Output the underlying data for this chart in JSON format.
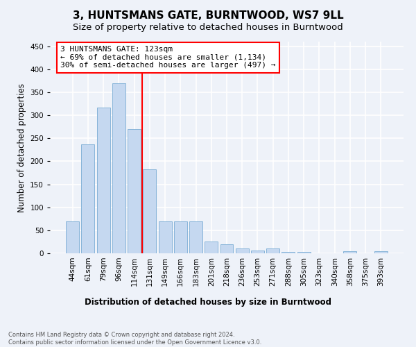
{
  "title": "3, HUNTSMANS GATE, BURNTWOOD, WS7 9LL",
  "subtitle": "Size of property relative to detached houses in Burntwood",
  "xlabel": "Distribution of detached houses by size in Burntwood",
  "ylabel": "Number of detached properties",
  "categories": [
    "44sqm",
    "61sqm",
    "79sqm",
    "96sqm",
    "114sqm",
    "131sqm",
    "149sqm",
    "166sqm",
    "183sqm",
    "201sqm",
    "218sqm",
    "236sqm",
    "253sqm",
    "271sqm",
    "288sqm",
    "305sqm",
    "323sqm",
    "340sqm",
    "358sqm",
    "375sqm",
    "393sqm"
  ],
  "values": [
    70,
    237,
    316,
    370,
    270,
    182,
    69,
    69,
    70,
    25,
    20,
    11,
    6,
    11,
    3,
    3,
    0,
    0,
    4,
    0,
    4
  ],
  "bar_color": "#c5d8f0",
  "bar_edge_color": "#7aadd4",
  "vline_x": 4.5,
  "vline_color": "red",
  "annotation_text": "3 HUNTSMANS GATE: 123sqm\n← 69% of detached houses are smaller (1,134)\n30% of semi-detached houses are larger (497) →",
  "annotation_box_color": "white",
  "annotation_box_edge": "red",
  "ylim": [
    0,
    460
  ],
  "yticks": [
    0,
    50,
    100,
    150,
    200,
    250,
    300,
    350,
    400,
    450
  ],
  "footer": "Contains HM Land Registry data © Crown copyright and database right 2024.\nContains public sector information licensed under the Open Government Licence v3.0.",
  "bg_color": "#eef2f9",
  "grid_color": "white",
  "title_fontsize": 11,
  "subtitle_fontsize": 9.5,
  "xlabel_fontsize": 8.5,
  "ylabel_fontsize": 8.5,
  "tick_fontsize": 7.5,
  "annotation_fontsize": 8,
  "footer_fontsize": 6
}
